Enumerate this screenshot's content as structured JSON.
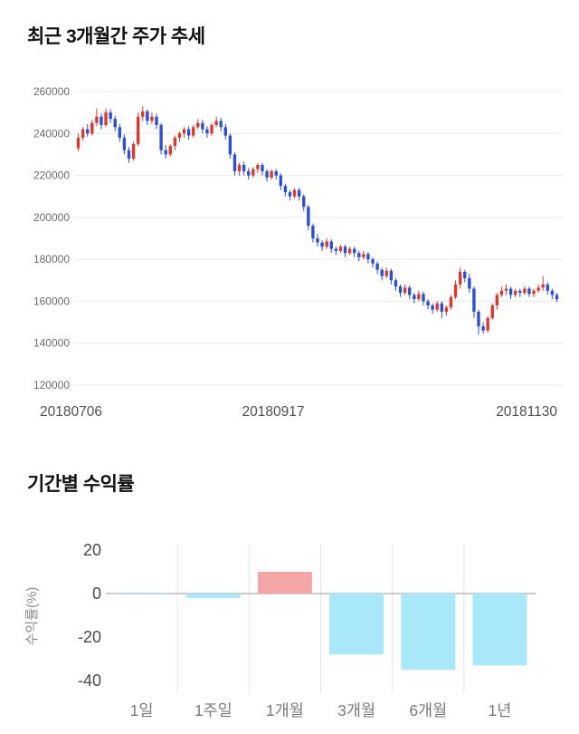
{
  "chart_data": [
    {
      "type": "candlestick",
      "title": "최근 3개월간 주가 추세",
      "ylim": [
        120000,
        260000
      ],
      "y_ticks": [
        260000,
        240000,
        220000,
        200000,
        180000,
        160000,
        140000,
        120000
      ],
      "x_tick_labels": [
        "20180706",
        "20180917",
        "20181130"
      ],
      "up_color": "#d93a30",
      "down_color": "#2d4fd1",
      "grid": true,
      "candles": [
        [
          233000,
          240000,
          231500,
          238000
        ],
        [
          238000,
          243000,
          236500,
          242000
        ],
        [
          242000,
          244500,
          238500,
          240000
        ],
        [
          240000,
          246500,
          239000,
          245000
        ],
        [
          245000,
          252000,
          243500,
          248000
        ],
        [
          248000,
          249500,
          242000,
          244000
        ],
        [
          244000,
          252000,
          243000,
          250000
        ],
        [
          250000,
          251500,
          245000,
          247000
        ],
        [
          247000,
          248500,
          241000,
          243000
        ],
        [
          243000,
          244500,
          236000,
          238000
        ],
        [
          238000,
          239500,
          230000,
          232000
        ],
        [
          232000,
          233500,
          226000,
          228000
        ],
        [
          228000,
          236000,
          227000,
          235000
        ],
        [
          235000,
          250000,
          234000,
          248000
        ],
        [
          248000,
          253000,
          246000,
          250500
        ],
        [
          250500,
          251500,
          244000,
          246000
        ],
        [
          246000,
          250000,
          244500,
          248000
        ],
        [
          248000,
          249500,
          242000,
          244000
        ],
        [
          244000,
          245000,
          230000,
          232000
        ],
        [
          232000,
          234500,
          228000,
          230000
        ],
        [
          230000,
          235000,
          229000,
          234000
        ],
        [
          234000,
          239000,
          232000,
          238000
        ],
        [
          238000,
          241000,
          236000,
          240000
        ],
        [
          240000,
          243000,
          238000,
          242000
        ],
        [
          242000,
          243500,
          237000,
          239000
        ],
        [
          239000,
          244000,
          238000,
          243000
        ],
        [
          243000,
          247000,
          242000,
          245000
        ],
        [
          245000,
          246500,
          240000,
          242000
        ],
        [
          242000,
          243500,
          238000,
          240000
        ],
        [
          240000,
          245000,
          239000,
          244000
        ],
        [
          244000,
          248000,
          243000,
          246000
        ],
        [
          246000,
          247500,
          241000,
          243000
        ],
        [
          243000,
          244500,
          237000,
          239000
        ],
        [
          239000,
          240000,
          228000,
          230000
        ],
        [
          230000,
          231000,
          220000,
          222000
        ],
        [
          222000,
          226000,
          220000,
          225000
        ],
        [
          225000,
          226500,
          220000,
          222000
        ],
        [
          222000,
          223500,
          218000,
          220000
        ],
        [
          220000,
          224000,
          219000,
          223000
        ],
        [
          223000,
          226000,
          221000,
          225000
        ],
        [
          225000,
          226000,
          220000,
          222000
        ],
        [
          222000,
          223000,
          217000,
          219000
        ],
        [
          219000,
          223000,
          218000,
          222000
        ],
        [
          222000,
          223000,
          218000,
          220000
        ],
        [
          220000,
          221000,
          213000,
          215000
        ],
        [
          215000,
          216000,
          210000,
          212000
        ],
        [
          212000,
          213000,
          208000,
          210000
        ],
        [
          210000,
          214000,
          209000,
          213000
        ],
        [
          213000,
          214000,
          208000,
          210000
        ],
        [
          210000,
          211000,
          203000,
          205000
        ],
        [
          205000,
          206000,
          194000,
          196000
        ],
        [
          196000,
          197000,
          188000,
          190000
        ],
        [
          190000,
          192000,
          186000,
          188000
        ],
        [
          188000,
          189000,
          184000,
          186000
        ],
        [
          186000,
          190000,
          185000,
          188500
        ],
        [
          188500,
          189500,
          183000,
          185000
        ],
        [
          185000,
          186000,
          182000,
          184000
        ],
        [
          184000,
          187000,
          183000,
          186000
        ],
        [
          186000,
          187000,
          181000,
          183000
        ],
        [
          183000,
          186000,
          182000,
          185000
        ],
        [
          185000,
          186000,
          181000,
          183000
        ],
        [
          183000,
          184000,
          179000,
          181000
        ],
        [
          181000,
          184000,
          180000,
          182500
        ],
        [
          182500,
          183500,
          178000,
          180000
        ],
        [
          180000,
          181000,
          176000,
          178000
        ],
        [
          178000,
          179000,
          173000,
          175000
        ],
        [
          175000,
          176000,
          170000,
          172000
        ],
        [
          172000,
          176000,
          171000,
          174500
        ],
        [
          174500,
          175500,
          168000,
          170000
        ],
        [
          170000,
          171000,
          165000,
          167000
        ],
        [
          167000,
          168000,
          162000,
          164000
        ],
        [
          164000,
          168000,
          163000,
          166500
        ],
        [
          166500,
          167500,
          161000,
          163000
        ],
        [
          163000,
          164000,
          159000,
          161000
        ],
        [
          161000,
          165000,
          160000,
          163500
        ],
        [
          163500,
          164500,
          158000,
          160000
        ],
        [
          160000,
          161000,
          156000,
          158000
        ],
        [
          158000,
          159000,
          154000,
          156000
        ],
        [
          156000,
          160000,
          155000,
          159000
        ],
        [
          159000,
          160000,
          152000,
          155000
        ],
        [
          155000,
          158000,
          153000,
          157000
        ],
        [
          157000,
          163000,
          156000,
          162000
        ],
        [
          162000,
          170000,
          161000,
          168000
        ],
        [
          168000,
          176000,
          166000,
          174000
        ],
        [
          174000,
          175000,
          169000,
          171000
        ],
        [
          171000,
          173000,
          164000,
          166000
        ],
        [
          166000,
          167000,
          152000,
          155000
        ],
        [
          155000,
          156000,
          144000,
          148000
        ],
        [
          148000,
          150000,
          144500,
          146000
        ],
        [
          146000,
          153000,
          145000,
          152000
        ],
        [
          152000,
          159000,
          151000,
          158000
        ],
        [
          158000,
          164000,
          156000,
          163000
        ],
        [
          163000,
          167000,
          162000,
          165000
        ],
        [
          165000,
          168000,
          163000,
          166000
        ],
        [
          166000,
          167000,
          161000,
          163000
        ],
        [
          163000,
          166000,
          162000,
          165000
        ],
        [
          165000,
          166000,
          162000,
          164000
        ],
        [
          164000,
          167000,
          163000,
          166000
        ],
        [
          166000,
          167000,
          162000,
          163500
        ],
        [
          163500,
          166000,
          162000,
          165000
        ],
        [
          165000,
          168000,
          164000,
          166500
        ],
        [
          166500,
          172000,
          165000,
          168000
        ],
        [
          168000,
          169000,
          163000,
          165000
        ],
        [
          165000,
          166000,
          161000,
          163000
        ],
        [
          163000,
          164000,
          159500,
          161000
        ]
      ]
    },
    {
      "type": "bar",
      "title": "기간별 수익률",
      "ylabel": "수익률(%)",
      "ylim": [
        -40,
        20
      ],
      "y_ticks": [
        20,
        0,
        -20,
        -40
      ],
      "categories": [
        "1일",
        "1주일",
        "1개월",
        "3개월",
        "6개월",
        "1년"
      ],
      "values": [
        -0.4,
        -2,
        10,
        -28,
        -35,
        -33
      ],
      "bar_colors": {
        "positive": "#f4a6a6",
        "negative": "#a9e8f8"
      },
      "legend": "none",
      "grid": "vertical-separators"
    }
  ]
}
